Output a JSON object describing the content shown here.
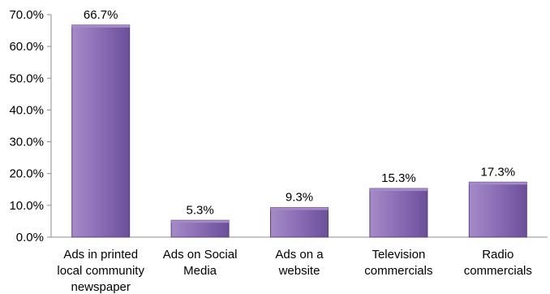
{
  "chart_data": {
    "type": "bar",
    "title": "",
    "xlabel": "",
    "ylabel": "",
    "categories": [
      [
        "Ads in printed",
        "local community",
        "newspaper"
      ],
      [
        "Ads on Social",
        "Media"
      ],
      [
        "Ads on a",
        "website"
      ],
      [
        "Television",
        "commercials"
      ],
      [
        "Radio",
        "commercials"
      ]
    ],
    "values": [
      66.7,
      5.3,
      9.3,
      15.3,
      17.3
    ],
    "data_labels": [
      "66.7%",
      "5.3%",
      "9.3%",
      "15.3%",
      "17.3%"
    ],
    "ylim": [
      0,
      70
    ],
    "yticks": [
      0,
      10,
      20,
      30,
      40,
      50,
      60,
      70
    ],
    "ytick_labels": [
      "0.0%",
      "10.0%",
      "20.0%",
      "30.0%",
      "40.0%",
      "50.0%",
      "60.0%",
      "70.0%"
    ],
    "grid": false,
    "legend": "none",
    "colors": {
      "bar_fill_top": "#a58bc7",
      "bar_fill_mid": "#8d6fb7",
      "bar_fill_bottom": "#6b4f99",
      "bar_stroke": "#5a3f86",
      "axis": "#8c8c8c"
    }
  }
}
